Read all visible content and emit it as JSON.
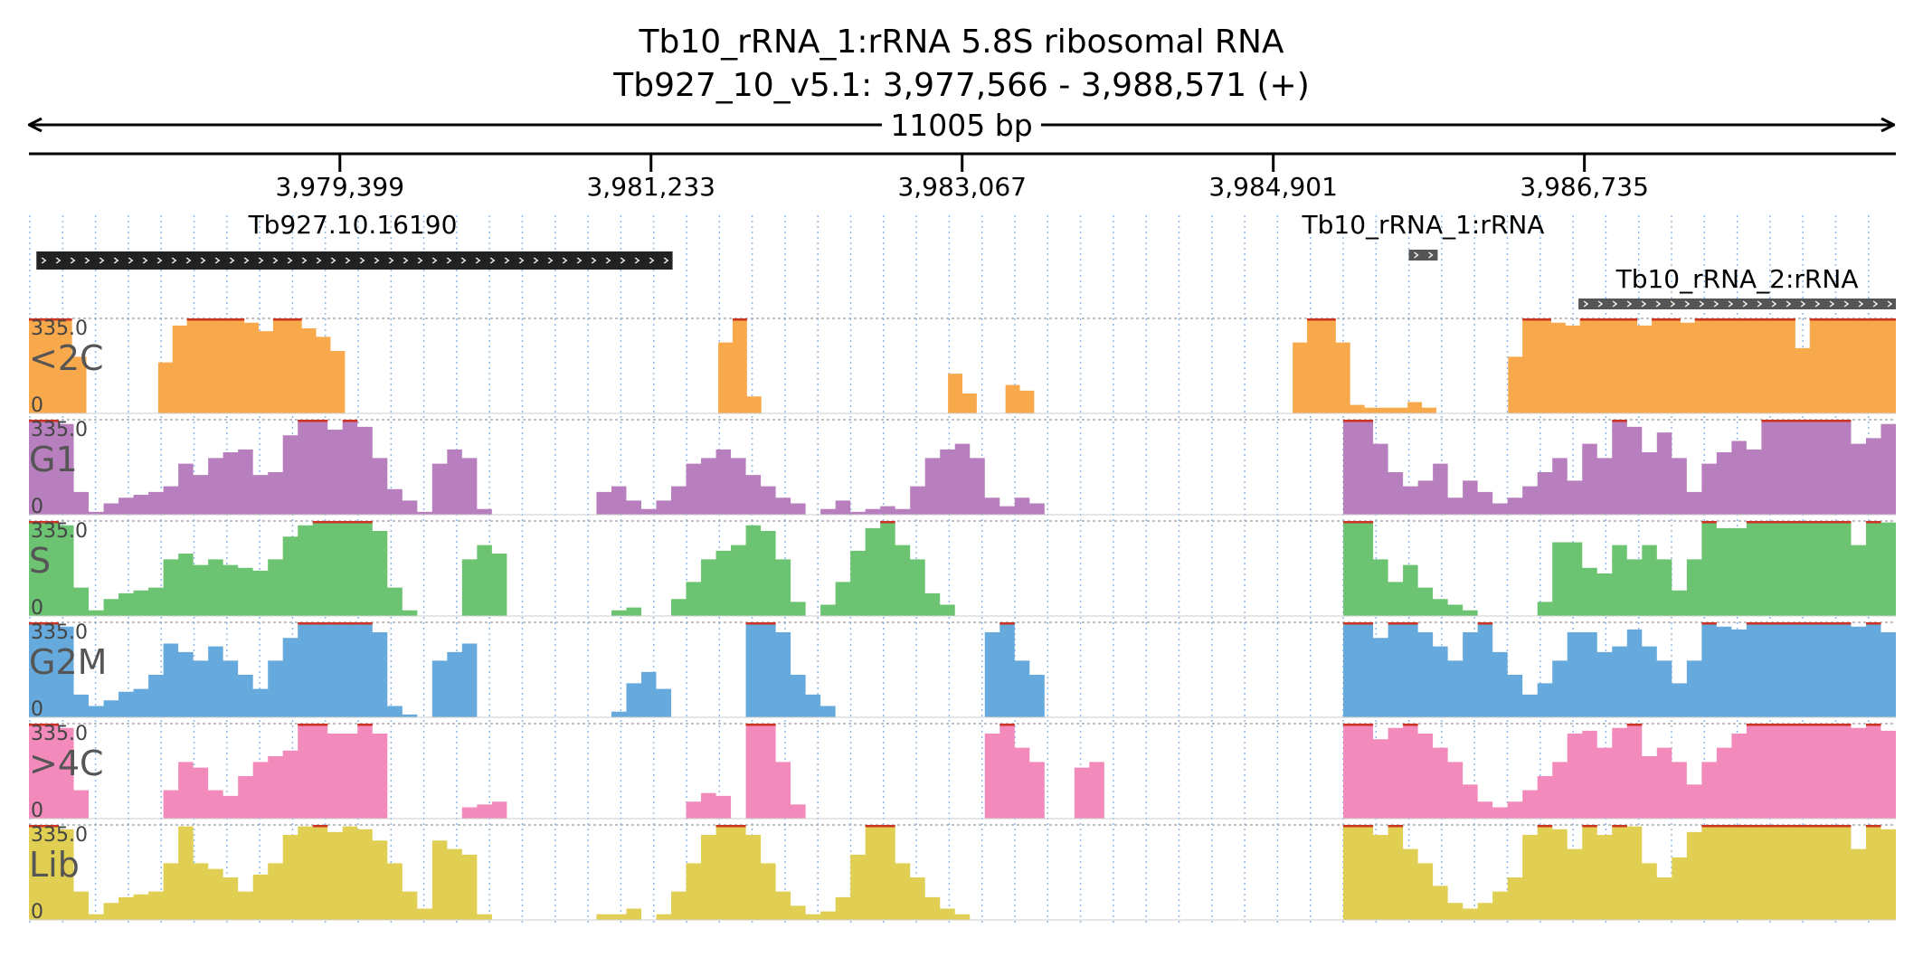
{
  "title": {
    "line1": "Tb10_rRNA_1:rRNA  5.8S ribosomal RNA",
    "line2": "Tb927_10_v5.1: 3,977,566 - 3,988,571 (+)"
  },
  "span_label": "11005 bp",
  "colors": {
    "<2C": "#f7a94b",
    "G1": "#b77fbd",
    "S": "#6cc371",
    "G2M": "#66aadd",
    ">4C": "#f28bbb",
    "Lib": "#e0cf52",
    "clip": "#cc3322",
    "feature_dark": "#222222",
    "feature_gray": "#555555"
  },
  "chart_data": {
    "type": "area",
    "x_range": [
      3977566,
      3988571
    ],
    "x_ticks": [
      3979399,
      3981233,
      3983067,
      3984901,
      3986735
    ],
    "x_tick_labels": [
      "3,979,399",
      "3,981,233",
      "3,983,067",
      "3,984,901",
      "3,986,735"
    ],
    "ylim": [
      0,
      335
    ],
    "y_max_label": "335.0",
    "y_min_label": "0",
    "grid": true,
    "features": [
      {
        "name": "Tb927.10.16190",
        "start": 3977610,
        "end": 3981360,
        "strand": "+",
        "style": "dark"
      },
      {
        "name": "Tb10_rRNA_1:rRNA",
        "start": 3985700,
        "end": 3985870,
        "strand": "+",
        "style": "gray"
      },
      {
        "name": "Tb10_rRNA_2:rRNA",
        "start": 3986700,
        "end": 3988571,
        "strand": "+",
        "style": "gray"
      }
    ],
    "bin_size": 250,
    "tracks": [
      {
        "name": "<2C",
        "values": [
          335,
          335,
          335,
          200,
          0,
          0,
          0,
          0,
          0,
          180,
          310,
          335,
          335,
          335,
          335,
          320,
          290,
          335,
          335,
          300,
          270,
          220,
          0,
          0,
          0,
          0,
          0,
          0,
          0,
          0,
          0,
          0,
          0,
          0,
          0,
          0,
          0,
          0,
          0,
          0,
          0,
          0,
          0,
          0,
          0,
          0,
          0,
          0,
          250,
          335,
          60,
          0,
          0,
          0,
          0,
          0,
          0,
          0,
          0,
          0,
          0,
          0,
          0,
          0,
          140,
          70,
          0,
          0,
          100,
          80,
          0,
          0,
          0,
          0,
          0,
          0,
          0,
          0,
          0,
          0,
          0,
          0,
          0,
          0,
          0,
          0,
          0,
          0,
          250,
          335,
          335,
          250,
          30,
          20,
          20,
          20,
          40,
          20,
          0,
          0,
          0,
          0,
          0,
          200,
          335,
          335,
          320,
          310,
          335,
          335,
          335,
          335,
          310,
          335,
          335,
          320,
          335,
          335,
          335,
          335,
          335,
          335,
          335,
          230,
          335,
          335,
          335,
          335,
          335,
          335
        ]
      },
      {
        "name": "G1",
        "values": [
          335,
          335,
          320,
          80,
          10,
          40,
          60,
          70,
          80,
          100,
          180,
          140,
          200,
          220,
          230,
          140,
          150,
          280,
          335,
          335,
          300,
          335,
          310,
          200,
          90,
          50,
          10,
          180,
          230,
          200,
          20,
          0,
          0,
          0,
          0,
          0,
          0,
          0,
          80,
          100,
          50,
          20,
          50,
          100,
          180,
          200,
          230,
          200,
          140,
          100,
          60,
          40,
          0,
          20,
          50,
          10,
          20,
          30,
          20,
          100,
          200,
          230,
          250,
          200,
          60,
          30,
          60,
          40,
          0,
          0,
          0,
          0,
          0,
          0,
          0,
          0,
          0,
          0,
          0,
          0,
          0,
          0,
          0,
          0,
          0,
          0,
          0,
          0,
          335,
          335,
          250,
          150,
          100,
          120,
          180,
          60,
          120,
          80,
          40,
          60,
          100,
          150,
          200,
          120,
          250,
          200,
          335,
          310,
          220,
          290,
          200,
          80,
          180,
          220,
          260,
          230,
          335,
          335,
          335,
          335,
          335,
          335,
          250,
          270,
          320
        ]
      },
      {
        "name": "S",
        "values": [
          335,
          335,
          320,
          100,
          20,
          60,
          80,
          90,
          100,
          200,
          220,
          180,
          200,
          180,
          170,
          160,
          200,
          280,
          320,
          335,
          335,
          335,
          335,
          300,
          100,
          20,
          0,
          0,
          0,
          200,
          250,
          220,
          0,
          0,
          0,
          0,
          0,
          0,
          0,
          20,
          30,
          0,
          0,
          60,
          120,
          200,
          230,
          250,
          320,
          300,
          200,
          50,
          0,
          40,
          120,
          230,
          310,
          335,
          250,
          200,
          80,
          40,
          0,
          0,
          0,
          0,
          0,
          0,
          0,
          0,
          0,
          0,
          0,
          0,
          0,
          0,
          0,
          0,
          0,
          0,
          0,
          0,
          0,
          0,
          0,
          0,
          0,
          0,
          335,
          335,
          200,
          120,
          180,
          100,
          60,
          40,
          20,
          0,
          0,
          0,
          0,
          50,
          260,
          260,
          170,
          150,
          250,
          200,
          250,
          200,
          90,
          200,
          335,
          310,
          310,
          335,
          335,
          335,
          335,
          335,
          335,
          335,
          250,
          335,
          330
        ]
      },
      {
        "name": "G2M",
        "values": [
          335,
          335,
          320,
          80,
          40,
          60,
          90,
          100,
          150,
          260,
          230,
          200,
          250,
          200,
          150,
          100,
          200,
          280,
          335,
          335,
          335,
          335,
          335,
          300,
          40,
          10,
          0,
          200,
          230,
          260,
          0,
          0,
          0,
          0,
          0,
          0,
          0,
          0,
          0,
          20,
          120,
          160,
          100,
          0,
          0,
          0,
          0,
          0,
          335,
          335,
          300,
          150,
          80,
          40,
          0,
          0,
          0,
          0,
          0,
          0,
          0,
          0,
          0,
          0,
          300,
          335,
          200,
          150,
          0,
          0,
          0,
          0,
          0,
          0,
          0,
          0,
          0,
          0,
          0,
          0,
          0,
          0,
          0,
          0,
          0,
          0,
          0,
          0,
          335,
          335,
          280,
          335,
          335,
          300,
          250,
          200,
          300,
          335,
          230,
          150,
          80,
          120,
          200,
          300,
          300,
          230,
          250,
          310,
          250,
          200,
          120,
          200,
          335,
          320,
          310,
          335,
          335,
          335,
          335,
          335,
          335,
          335,
          320,
          335,
          300
        ]
      },
      {
        "name": ">4C",
        "values": [
          335,
          335,
          320,
          100,
          0,
          0,
          0,
          0,
          0,
          100,
          200,
          180,
          100,
          80,
          150,
          200,
          220,
          240,
          335,
          335,
          300,
          300,
          335,
          300,
          0,
          0,
          0,
          0,
          0,
          40,
          50,
          60,
          0,
          0,
          0,
          0,
          0,
          0,
          0,
          0,
          0,
          0,
          0,
          0,
          60,
          90,
          80,
          0,
          335,
          335,
          200,
          50,
          0,
          0,
          0,
          0,
          0,
          0,
          0,
          0,
          0,
          0,
          0,
          0,
          300,
          335,
          250,
          200,
          0,
          0,
          180,
          200,
          0,
          0,
          0,
          0,
          0,
          0,
          0,
          0,
          0,
          0,
          0,
          0,
          0,
          0,
          0,
          0,
          335,
          335,
          280,
          320,
          335,
          300,
          250,
          200,
          120,
          60,
          40,
          60,
          100,
          150,
          200,
          300,
          310,
          250,
          320,
          335,
          220,
          250,
          200,
          120,
          200,
          250,
          300,
          335,
          335,
          335,
          335,
          335,
          335,
          335,
          320,
          335,
          310
        ]
      },
      {
        "name": "Lib",
        "values": [
          335,
          335,
          320,
          100,
          20,
          60,
          80,
          90,
          100,
          200,
          330,
          200,
          180,
          150,
          100,
          160,
          200,
          300,
          330,
          335,
          310,
          330,
          320,
          280,
          200,
          100,
          40,
          280,
          250,
          230,
          20,
          0,
          0,
          0,
          0,
          0,
          0,
          0,
          20,
          20,
          40,
          0,
          20,
          100,
          200,
          300,
          335,
          335,
          300,
          200,
          100,
          50,
          20,
          30,
          80,
          230,
          335,
          335,
          200,
          150,
          80,
          40,
          20,
          0,
          0,
          0,
          0,
          0,
          0,
          0,
          0,
          0,
          0,
          0,
          0,
          0,
          0,
          0,
          0,
          0,
          0,
          0,
          0,
          0,
          0,
          0,
          0,
          0,
          335,
          335,
          300,
          335,
          250,
          200,
          120,
          60,
          40,
          60,
          100,
          150,
          300,
          335,
          320,
          250,
          335,
          300,
          335,
          330,
          200,
          150,
          220,
          310,
          335,
          335,
          335,
          335,
          335,
          335,
          335,
          335,
          335,
          335,
          250,
          335,
          320
        ]
      }
    ]
  }
}
